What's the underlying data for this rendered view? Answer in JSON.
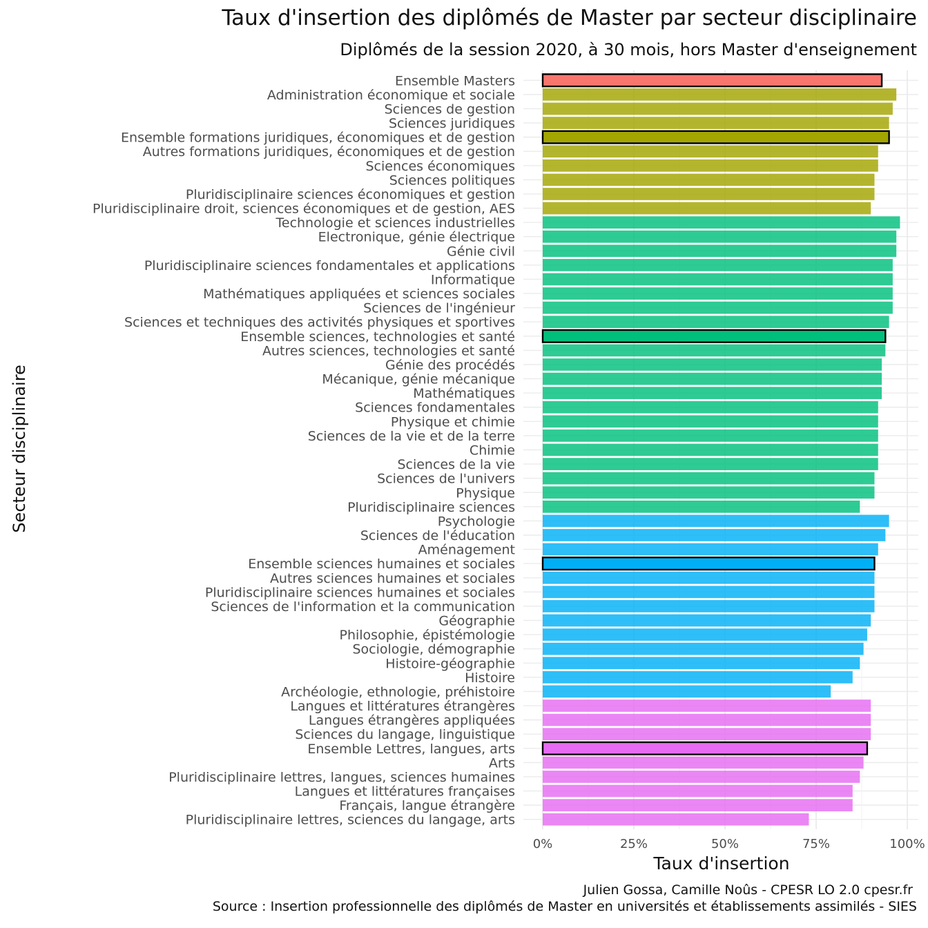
{
  "chart_data": {
    "type": "bar",
    "orientation": "horizontal",
    "title": "Taux d'insertion des diplômés de Master par secteur disciplinaire",
    "subtitle": "Diplômés de la session 2020, à 30 mois, hors Master d'enseignement",
    "xlabel": "Taux d'insertion",
    "ylabel": "Secteur disciplinaire",
    "xlim": [
      0,
      100
    ],
    "x_ticks": [
      "0%",
      "25%",
      "50%",
      "75%",
      "100%"
    ],
    "grid": true,
    "legend": "none",
    "caption": [
      "Julien Gossa, Camille Noûs - CPESR LO 2.0 cpesr.fr",
      "Source : Insertion professionnelle des diplômés de Master en universités et établissements assimilés - SIES"
    ],
    "group_colors": {
      "ensemble": "#F8766D",
      "droit_eco_gestion": "#A3A500",
      "sciences": "#00BF7D",
      "shs": "#00B0F6",
      "lla": "#E76BF3"
    },
    "bars": [
      {
        "label": "Ensemble Masters",
        "value": 93,
        "group": "ensemble",
        "highlight": true
      },
      {
        "label": "Administration économique et sociale",
        "value": 97,
        "group": "droit_eco_gestion",
        "highlight": false
      },
      {
        "label": "Sciences de gestion",
        "value": 96,
        "group": "droit_eco_gestion",
        "highlight": false
      },
      {
        "label": "Sciences juridiques",
        "value": 95,
        "group": "droit_eco_gestion",
        "highlight": false
      },
      {
        "label": "Ensemble formations juridiques, économiques et de gestion",
        "value": 95,
        "group": "droit_eco_gestion",
        "highlight": true
      },
      {
        "label": "Autres formations juridiques, économiques et de gestion",
        "value": 92,
        "group": "droit_eco_gestion",
        "highlight": false
      },
      {
        "label": "Sciences économiques",
        "value": 92,
        "group": "droit_eco_gestion",
        "highlight": false
      },
      {
        "label": "Sciences politiques",
        "value": 91,
        "group": "droit_eco_gestion",
        "highlight": false
      },
      {
        "label": "Pluridisciplinaire sciences économiques et gestion",
        "value": 91,
        "group": "droit_eco_gestion",
        "highlight": false
      },
      {
        "label": "Pluridisciplinaire droit, sciences économiques et de gestion, AES",
        "value": 90,
        "group": "droit_eco_gestion",
        "highlight": false
      },
      {
        "label": "Technologie et sciences industrielles",
        "value": 98,
        "group": "sciences",
        "highlight": false
      },
      {
        "label": "Electronique, génie électrique",
        "value": 97,
        "group": "sciences",
        "highlight": false
      },
      {
        "label": "Génie civil",
        "value": 97,
        "group": "sciences",
        "highlight": false
      },
      {
        "label": "Pluridisciplinaire sciences fondamentales et applications",
        "value": 96,
        "group": "sciences",
        "highlight": false
      },
      {
        "label": "Informatique",
        "value": 96,
        "group": "sciences",
        "highlight": false
      },
      {
        "label": "Mathématiques appliquées et sciences sociales",
        "value": 96,
        "group": "sciences",
        "highlight": false
      },
      {
        "label": "Sciences de l'ingénieur",
        "value": 96,
        "group": "sciences",
        "highlight": false
      },
      {
        "label": "Sciences et techniques des activités physiques et sportives",
        "value": 95,
        "group": "sciences",
        "highlight": false
      },
      {
        "label": "Ensemble sciences, technologies et santé",
        "value": 94,
        "group": "sciences",
        "highlight": true
      },
      {
        "label": "Autres sciences, technologies et santé",
        "value": 94,
        "group": "sciences",
        "highlight": false
      },
      {
        "label": "Génie des procédés",
        "value": 93,
        "group": "sciences",
        "highlight": false
      },
      {
        "label": "Mécanique, génie mécanique",
        "value": 93,
        "group": "sciences",
        "highlight": false
      },
      {
        "label": "Mathématiques",
        "value": 93,
        "group": "sciences",
        "highlight": false
      },
      {
        "label": "Sciences fondamentales",
        "value": 92,
        "group": "sciences",
        "highlight": false
      },
      {
        "label": "Physique et chimie",
        "value": 92,
        "group": "sciences",
        "highlight": false
      },
      {
        "label": "Sciences de la vie et de la terre",
        "value": 92,
        "group": "sciences",
        "highlight": false
      },
      {
        "label": "Chimie",
        "value": 92,
        "group": "sciences",
        "highlight": false
      },
      {
        "label": "Sciences de la vie",
        "value": 92,
        "group": "sciences",
        "highlight": false
      },
      {
        "label": "Sciences de l'univers",
        "value": 91,
        "group": "sciences",
        "highlight": false
      },
      {
        "label": "Physique",
        "value": 91,
        "group": "sciences",
        "highlight": false
      },
      {
        "label": "Pluridisciplinaire sciences",
        "value": 87,
        "group": "sciences",
        "highlight": false
      },
      {
        "label": "Psychologie",
        "value": 95,
        "group": "shs",
        "highlight": false
      },
      {
        "label": "Sciences de l'éducation",
        "value": 94,
        "group": "shs",
        "highlight": false
      },
      {
        "label": "Aménagement",
        "value": 92,
        "group": "shs",
        "highlight": false
      },
      {
        "label": "Ensemble sciences humaines et sociales",
        "value": 91,
        "group": "shs",
        "highlight": true
      },
      {
        "label": "Autres sciences humaines et sociales",
        "value": 91,
        "group": "shs",
        "highlight": false
      },
      {
        "label": "Pluridisciplinaire sciences humaines et sociales",
        "value": 91,
        "group": "shs",
        "highlight": false
      },
      {
        "label": "Sciences de l'information et la communication",
        "value": 91,
        "group": "shs",
        "highlight": false
      },
      {
        "label": "Géographie",
        "value": 90,
        "group": "shs",
        "highlight": false
      },
      {
        "label": "Philosophie, épistémologie",
        "value": 89,
        "group": "shs",
        "highlight": false
      },
      {
        "label": "Sociologie, démographie",
        "value": 88,
        "group": "shs",
        "highlight": false
      },
      {
        "label": "Histoire-géographie",
        "value": 87,
        "group": "shs",
        "highlight": false
      },
      {
        "label": "Histoire",
        "value": 85,
        "group": "shs",
        "highlight": false
      },
      {
        "label": "Archéologie, ethnologie, préhistoire",
        "value": 79,
        "group": "shs",
        "highlight": false
      },
      {
        "label": "Langues et littératures étrangères",
        "value": 90,
        "group": "lla",
        "highlight": false
      },
      {
        "label": "Langues étrangères appliquées",
        "value": 90,
        "group": "lla",
        "highlight": false
      },
      {
        "label": "Sciences du langage, linguistique",
        "value": 90,
        "group": "lla",
        "highlight": false
      },
      {
        "label": "Ensemble Lettres, langues, arts",
        "value": 89,
        "group": "lla",
        "highlight": true
      },
      {
        "label": "Arts",
        "value": 88,
        "group": "lla",
        "highlight": false
      },
      {
        "label": "Pluridisciplinaire lettres, langues, sciences humaines",
        "value": 87,
        "group": "lla",
        "highlight": false
      },
      {
        "label": "Langues et littératures françaises",
        "value": 85,
        "group": "lla",
        "highlight": false
      },
      {
        "label": "Français, langue étrangère",
        "value": 85,
        "group": "lla",
        "highlight": false
      },
      {
        "label": "Pluridisciplinaire lettres, sciences du langage, arts",
        "value": 73,
        "group": "lla",
        "highlight": false
      }
    ]
  }
}
